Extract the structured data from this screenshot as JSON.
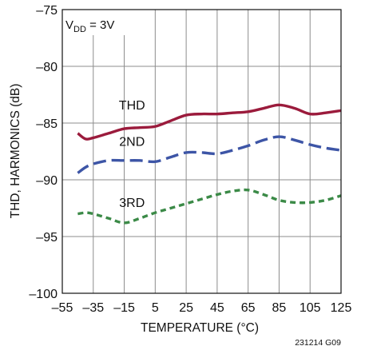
{
  "figure_id": "231214 G09",
  "chart_data": {
    "type": "line",
    "title": "",
    "condition": {
      "main": "V",
      "sub": "DD",
      "rest": " = 3V"
    },
    "xlabel": "TEMPERATURE (°C)",
    "ylabel": "THD, HARMONICS (dB)",
    "xlim": [
      -55,
      125
    ],
    "ylim": [
      -100,
      -75
    ],
    "xticks": [
      -55,
      -35,
      -15,
      5,
      25,
      45,
      65,
      85,
      105,
      125
    ],
    "xtick_labels": [
      "–55",
      "–35",
      "–15",
      "5",
      "25",
      "45",
      "65",
      "85",
      "105",
      "125"
    ],
    "yticks": [
      -100,
      -95,
      -90,
      -85,
      -80,
      -75
    ],
    "ytick_labels": [
      "–100",
      "–95",
      "–90",
      "–85",
      "–80",
      "–75"
    ],
    "grid": true,
    "series": [
      {
        "name": "THD",
        "color": "#9b1b3c",
        "dash": "solid",
        "label_at": [
          -10,
          -83.8
        ],
        "x": [
          -45,
          -40,
          -35,
          -25,
          -15,
          -5,
          5,
          15,
          25,
          35,
          45,
          55,
          65,
          75,
          85,
          95,
          105,
          115,
          125
        ],
        "y": [
          -85.9,
          -86.4,
          -86.3,
          -85.9,
          -85.5,
          -85.4,
          -85.3,
          -84.8,
          -84.3,
          -84.2,
          -84.2,
          -84.1,
          -84.0,
          -83.7,
          -83.4,
          -83.7,
          -84.2,
          -84.1,
          -83.9
        ]
      },
      {
        "name": "2ND",
        "color": "#3d55a6",
        "dash": "long",
        "label_at": [
          -10,
          -87.0
        ],
        "x": [
          -45,
          -40,
          -35,
          -25,
          -15,
          -5,
          5,
          15,
          25,
          35,
          45,
          55,
          65,
          75,
          85,
          95,
          105,
          115,
          125
        ],
        "y": [
          -89.4,
          -88.9,
          -88.6,
          -88.3,
          -88.3,
          -88.3,
          -88.4,
          -88.0,
          -87.6,
          -87.6,
          -87.7,
          -87.4,
          -87.0,
          -86.5,
          -86.2,
          -86.5,
          -86.9,
          -87.2,
          -87.4
        ]
      },
      {
        "name": "3RD",
        "color": "#3b8a47",
        "dash": "short",
        "label_at": [
          -10,
          -92.4
        ],
        "x": [
          -45,
          -40,
          -35,
          -25,
          -15,
          -5,
          5,
          15,
          25,
          35,
          45,
          55,
          65,
          75,
          85,
          95,
          105,
          115,
          125
        ],
        "y": [
          -93.0,
          -92.9,
          -93.0,
          -93.4,
          -93.8,
          -93.4,
          -92.9,
          -92.5,
          -92.1,
          -91.7,
          -91.3,
          -91.0,
          -90.9,
          -91.3,
          -91.8,
          -92.0,
          -92.0,
          -91.8,
          -91.4
        ]
      }
    ]
  }
}
